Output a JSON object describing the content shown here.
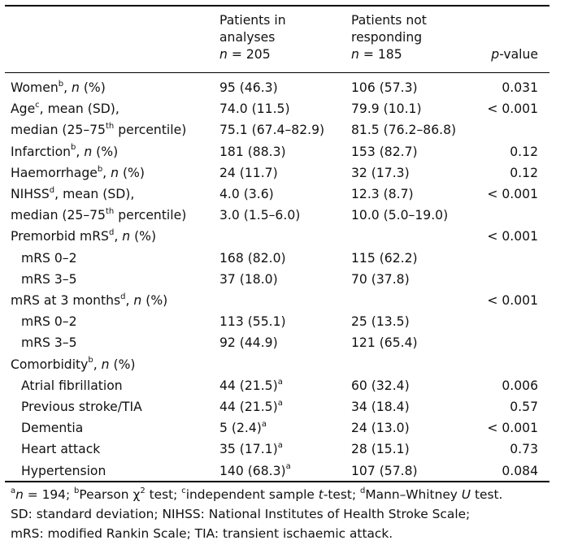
{
  "table": {
    "headers": {
      "col1_line1": "Patients in",
      "col1_line2": "analyses",
      "col1_n": "n = 205",
      "col2_line1": "Patients not",
      "col2_line2": "responding",
      "col2_n": "n = 185",
      "col3": "p-value"
    },
    "rows": [
      {
        "label": "Women",
        "sup": "b",
        "suffix": ", n (%)",
        "indent": false,
        "v1": "95 (46.3)",
        "v1sup": "",
        "v2": "106 (57.3)",
        "p": "0.031"
      },
      {
        "label": "Age",
        "sup": "c",
        "suffix": ", mean (SD),",
        "indent": false,
        "v1": "74.0 (11.5)",
        "v1sup": "",
        "v2": "79.9 (10.1)",
        "p": "< 0.001"
      },
      {
        "label": "median (25–75",
        "sup": "th",
        "suffix": " percentile)",
        "indent": false,
        "v1": "75.1 (67.4–82.9)",
        "v1sup": "",
        "v2": "81.5 (76.2–86.8)",
        "p": ""
      },
      {
        "label": "Infarction",
        "sup": "b",
        "suffix": ", n (%)",
        "indent": false,
        "v1": "181 (88.3)",
        "v1sup": "",
        "v2": "153 (82.7)",
        "p": "0.12"
      },
      {
        "label": "Haemorrhage",
        "sup": "b",
        "suffix": ", n (%)",
        "indent": false,
        "v1": "24 (11.7)",
        "v1sup": "",
        "v2": "32 (17.3)",
        "p": "0.12"
      },
      {
        "label": "NIHSS",
        "sup": "d",
        "suffix": ", mean (SD),",
        "indent": false,
        "v1": "4.0 (3.6)",
        "v1sup": "",
        "v2": "12.3 (8.7)",
        "p": "< 0.001"
      },
      {
        "label": "median (25–75",
        "sup": "th",
        "suffix": " percentile)",
        "indent": false,
        "v1": "3.0 (1.5–6.0)",
        "v1sup": "",
        "v2": "10.0 (5.0–19.0)",
        "p": ""
      },
      {
        "label": "Premorbid mRS",
        "sup": "d",
        "suffix": ", n (%)",
        "indent": false,
        "v1": "",
        "v1sup": "",
        "v2": "",
        "p": "< 0.001"
      },
      {
        "label": "mRS 0–2",
        "sup": "",
        "suffix": "",
        "indent": true,
        "v1": "168 (82.0)",
        "v1sup": "",
        "v2": "115 (62.2)",
        "p": ""
      },
      {
        "label": "mRS 3–5",
        "sup": "",
        "suffix": "",
        "indent": true,
        "v1": "37 (18.0)",
        "v1sup": "",
        "v2": "70 (37.8)",
        "p": ""
      },
      {
        "label": "mRS at 3 months",
        "sup": "d",
        "suffix": ", n (%)",
        "indent": false,
        "v1": "",
        "v1sup": "",
        "v2": "",
        "p": "< 0.001"
      },
      {
        "label": "mRS 0–2",
        "sup": "",
        "suffix": "",
        "indent": true,
        "v1": "113 (55.1)",
        "v1sup": "",
        "v2": "25 (13.5)",
        "p": ""
      },
      {
        "label": "mRS 3–5",
        "sup": "",
        "suffix": "",
        "indent": true,
        "v1": "92 (44.9)",
        "v1sup": "",
        "v2": "121 (65.4)",
        "p": ""
      },
      {
        "label": "Comorbidity",
        "sup": "b",
        "suffix": ", n (%)",
        "indent": false,
        "v1": "",
        "v1sup": "",
        "v2": "",
        "p": ""
      },
      {
        "label": "Atrial fibrillation",
        "sup": "",
        "suffix": "",
        "indent": true,
        "v1": "44 (21.5)",
        "v1sup": "a",
        "v2": "60 (32.4)",
        "p": "0.006"
      },
      {
        "label": "Previous stroke/TIA",
        "sup": "",
        "suffix": "",
        "indent": true,
        "v1": "44 (21.5)",
        "v1sup": "a",
        "v2": "34 (18.4)",
        "p": "0.57"
      },
      {
        "label": "Dementia",
        "sup": "",
        "suffix": "",
        "indent": true,
        "v1": "5 (2.4)",
        "v1sup": "a",
        "v2": "24 (13.0)",
        "p": "< 0.001"
      },
      {
        "label": "Heart attack",
        "sup": "",
        "suffix": "",
        "indent": true,
        "v1": "35 (17.1)",
        "v1sup": "a",
        "v2": "28 (15.1)",
        "p": "0.73"
      },
      {
        "label": "Hypertension",
        "sup": "",
        "suffix": "",
        "indent": true,
        "v1": "140 (68.3)",
        "v1sup": "a",
        "v2": "107 (57.8)",
        "p": "0.084"
      }
    ]
  },
  "footnotes": {
    "line1": "an = 194; bPearson χ2 test; cindependent sample t-test; dMann–Whitney U test.",
    "line2": "SD: standard deviation; NIHSS: National Institutes of Health Stroke Scale;",
    "line3": "mRS: modified Rankin Scale; TIA: transient ischaemic attack."
  }
}
